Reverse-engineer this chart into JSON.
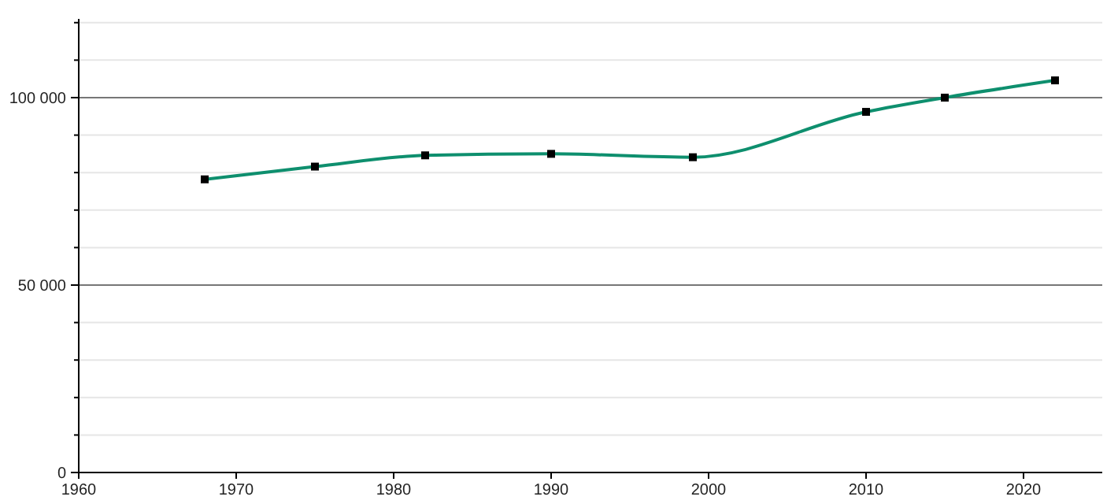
{
  "chart_data": {
    "type": "line",
    "x": [
      1968,
      1975,
      1982,
      1990,
      1999,
      2010,
      2015,
      2022
    ],
    "series": [
      {
        "color": "#0e8f6e",
        "values": [
          78200,
          81600,
          84600,
          85000,
          84100,
          96200,
          100000,
          104600
        ]
      }
    ],
    "xlim": [
      1960,
      2025
    ],
    "xticks": [
      1960,
      1970,
      1980,
      1990,
      2000,
      2010,
      2020
    ],
    "ylim": [
      0,
      121000
    ],
    "yticks": [
      {
        "value": 0,
        "label": "0"
      },
      {
        "value": 10000,
        "label": null
      },
      {
        "value": 20000,
        "label": null
      },
      {
        "value": 30000,
        "label": null
      },
      {
        "value": 40000,
        "label": null
      },
      {
        "value": 50000,
        "label": "50 000"
      },
      {
        "value": 60000,
        "label": null
      },
      {
        "value": 70000,
        "label": null
      },
      {
        "value": 80000,
        "label": null
      },
      {
        "value": 90000,
        "label": null
      },
      {
        "value": 100000,
        "label": "100 000"
      },
      {
        "value": 110000,
        "label": null
      },
      {
        "value": 120000,
        "label": null
      }
    ],
    "grid": "y",
    "marker": "square",
    "line_style": "solid"
  }
}
